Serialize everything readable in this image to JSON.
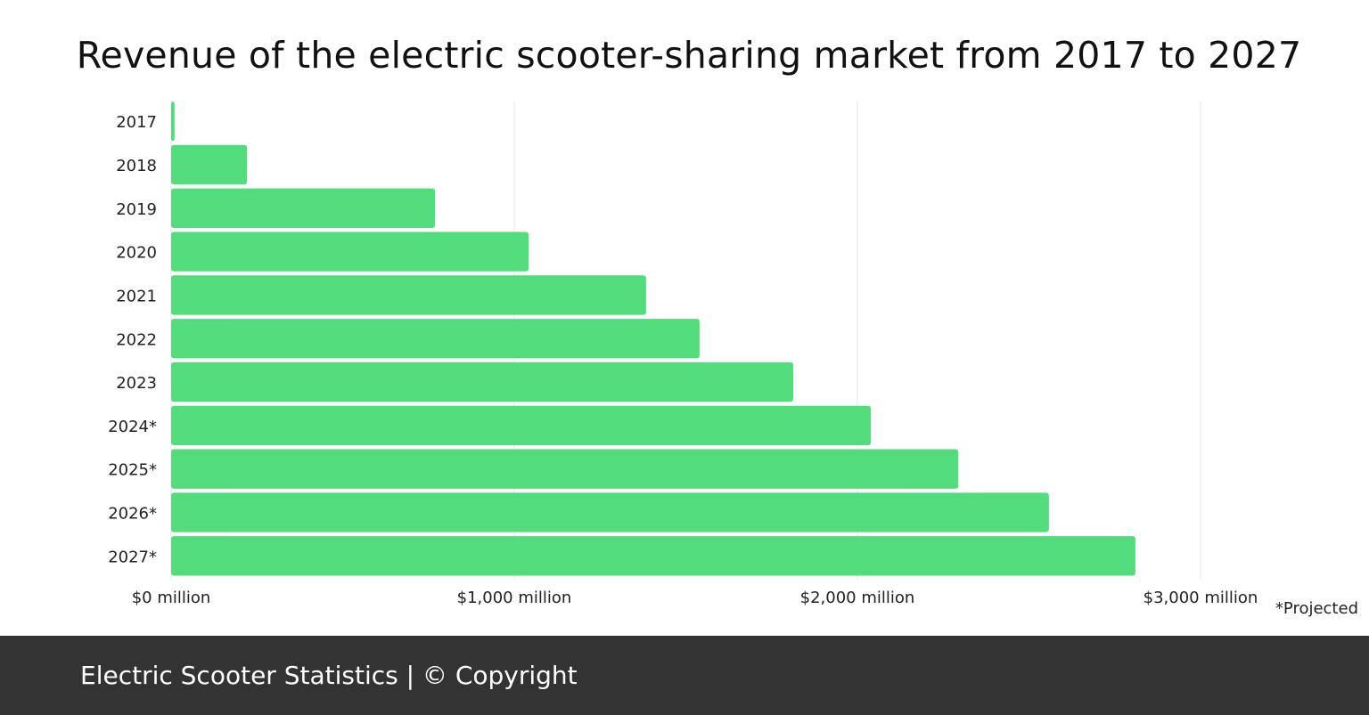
{
  "chart_data": {
    "type": "bar",
    "orientation": "horizontal",
    "title": "Revenue of the electric scooter-sharing market from 2017 to 2027",
    "categories": [
      "2017",
      "2018",
      "2019",
      "2020",
      "2021",
      "2022",
      "2023",
      "2024*",
      "2025*",
      "2026*",
      "2027*"
    ],
    "values": [
      10,
      221,
      769,
      1042,
      1384,
      1540,
      1813,
      2039,
      2294,
      2558,
      2810
    ],
    "unit": "million USD",
    "xlim": [
      0,
      3000
    ],
    "xticks": [
      0,
      1000,
      2000,
      3000
    ],
    "xtick_labels": [
      "$0 million",
      "$1,000 million",
      "$2,000 million",
      "$3,000 million"
    ],
    "grid": true,
    "bar_color": "#52dc7b",
    "note": "*Projected"
  },
  "footer": {
    "text": "Electric Scooter Statistics | © Copyright",
    "background": "#333333"
  }
}
